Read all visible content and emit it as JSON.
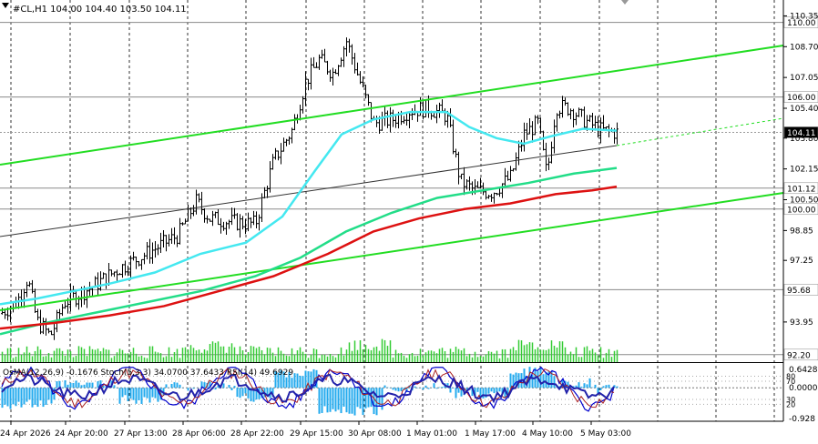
{
  "symbol_header": "#CL,H1  104.00 104.40 103.50 104.11",
  "indicator_header": "OsMA(12,26,9) -0.1676  Stoch(5,3,3) 34.0700 37.6433  RSI(14) 49.6929",
  "price_scale": [
    "110.35",
    "108.70",
    "107.05",
    "105.40",
    "103.80",
    "102.15",
    "100.50",
    "98.85",
    "97.25",
    "93.95"
  ],
  "hline_labels": [
    "110.00",
    "106.00",
    "104.11",
    "101.12",
    "100.00",
    "95.68",
    "92.20"
  ],
  "sub_scale": [
    "0.6428",
    "0.0000",
    "-0.928"
  ],
  "sub_levels": [
    "80",
    "70",
    "30",
    "20"
  ],
  "time_labels": [
    "24 Apr 2026",
    "24 Apr 20:00",
    "27 Apr 13:00",
    "28 Apr 06:00",
    "28 Apr 22:00",
    "29 Apr 15:00",
    "30 Apr 08:00",
    "1 May 01:00",
    "1 May 17:00",
    "4 May 10:00",
    "5 May 03:00"
  ],
  "colors": {
    "channel": "#22dd22",
    "ma_fast": "#44e8f0",
    "ma_mid": "#22dd88",
    "ma_slow": "#dd1111",
    "volume": "#33cc33",
    "osma": "#22aaee",
    "stoch": "#0000cc",
    "rsi": "#2222aa",
    "price_highlight": "#000000"
  }
}
